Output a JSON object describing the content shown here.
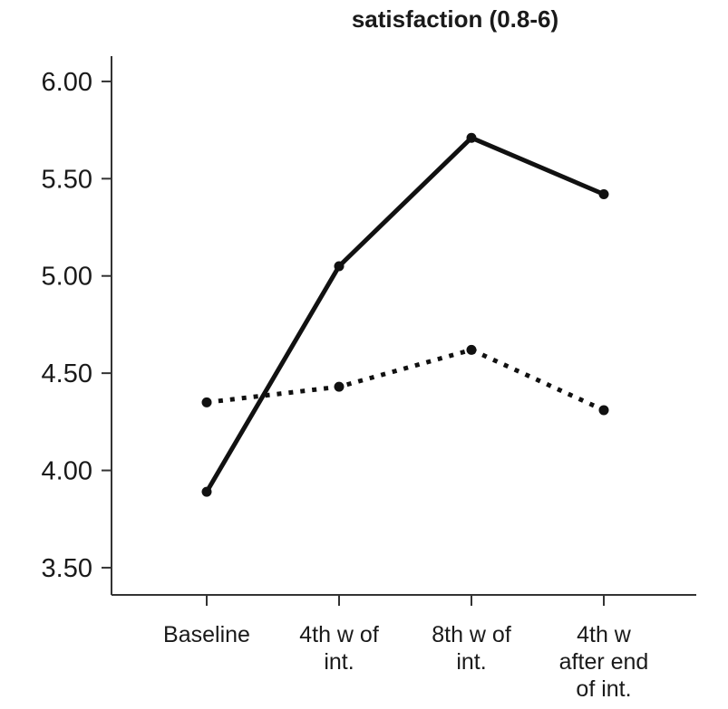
{
  "chart_data": {
    "type": "line",
    "title": "satisfaction (0.8-6)",
    "xlabel": "",
    "ylabel": "",
    "categories": [
      [
        "Baseline"
      ],
      [
        "4th w of",
        "int."
      ],
      [
        "8th w of",
        "int."
      ],
      [
        "4th w",
        "after end",
        "of int."
      ]
    ],
    "y_ticks": [
      "3.50",
      "4.00",
      "4.50",
      "5.00",
      "5.50",
      "6.00"
    ],
    "ylim": [
      3.36,
      6.13
    ],
    "grid": false,
    "legend": "none",
    "series": [
      {
        "style": "solid",
        "color": "#111111",
        "values": [
          3.89,
          5.05,
          5.71,
          5.42
        ]
      },
      {
        "style": "dotted",
        "color": "#111111",
        "values": [
          4.35,
          4.43,
          4.62,
          4.31
        ]
      }
    ]
  }
}
